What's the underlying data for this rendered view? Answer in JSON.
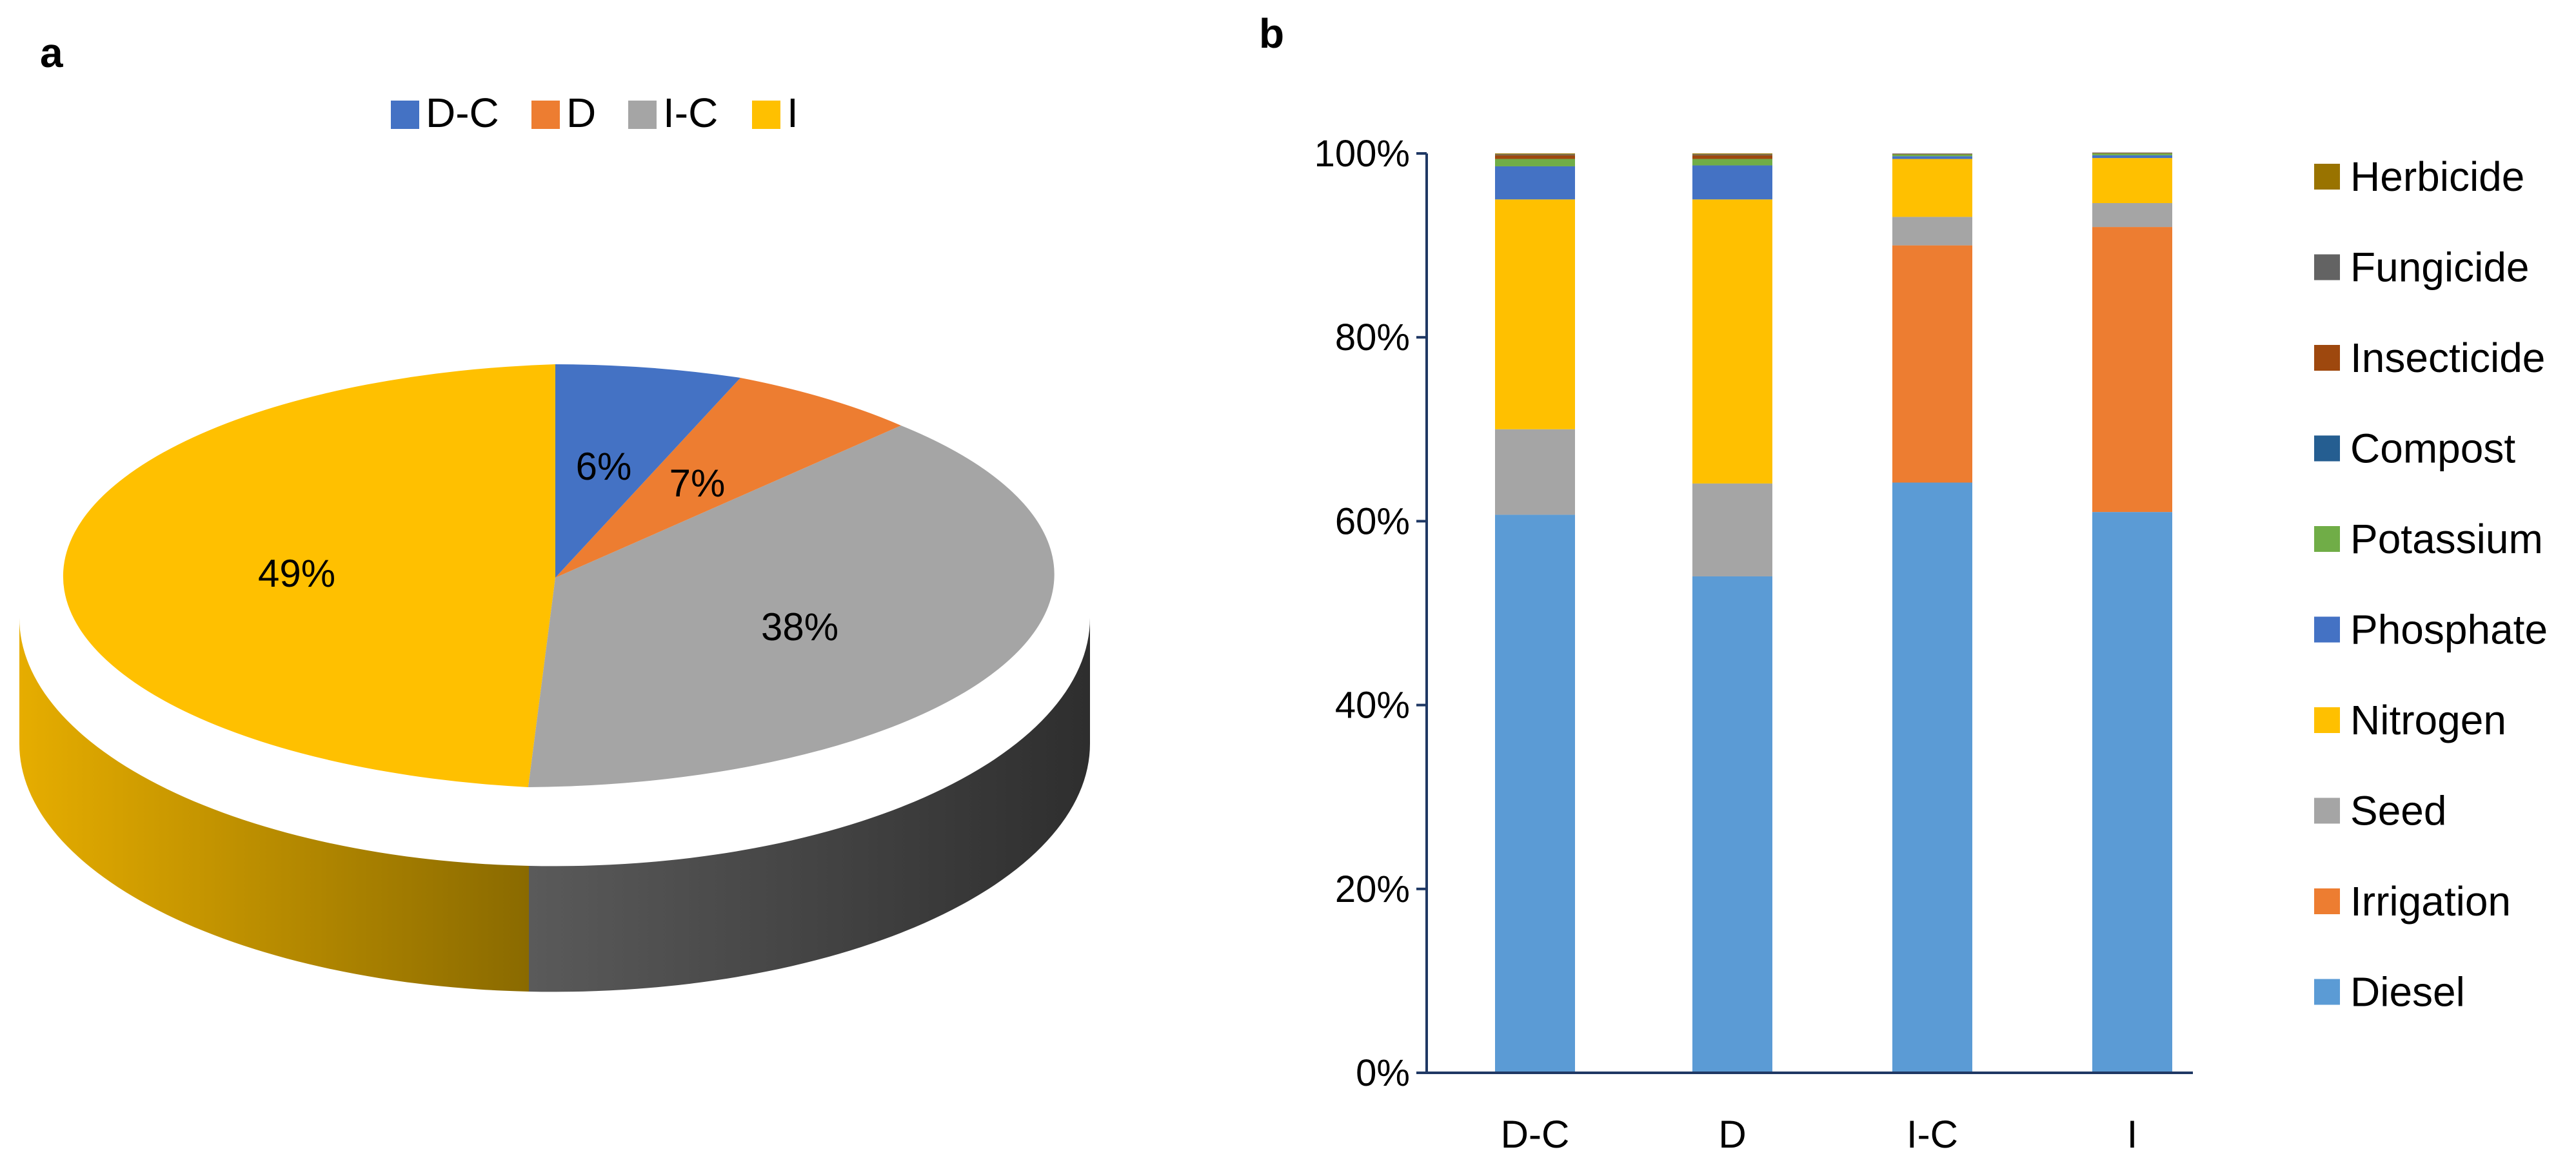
{
  "chart_data": [
    {
      "type": "pie",
      "panel_label": "a",
      "title": "",
      "legend_position": "top",
      "slices": [
        {
          "label": "D-C",
          "value": 6,
          "display": "6%",
          "color": "#4472C4"
        },
        {
          "label": "D",
          "value": 7,
          "display": "7%",
          "color": "#ED7D31"
        },
        {
          "label": "I-C",
          "value": 38,
          "display": "38%",
          "color": "#A5A5A5"
        },
        {
          "label": "I",
          "value": 49,
          "display": "49%",
          "color": "#FFC000"
        }
      ]
    },
    {
      "type": "bar",
      "stacked": true,
      "percent": true,
      "panel_label": "b",
      "title": "",
      "xlabel": "",
      "ylabel": "",
      "ylim": [
        0,
        100
      ],
      "yticks": [
        "0%",
        "20%",
        "40%",
        "60%",
        "80%",
        "100%"
      ],
      "legend_position": "right",
      "categories": [
        "D-C",
        "D",
        "I-C",
        "I"
      ],
      "series": [
        {
          "name": "Diesel",
          "color": "#5B9BD5",
          "values": [
            60.7,
            54.0,
            64.2,
            61.0
          ]
        },
        {
          "name": "Irrigation",
          "color": "#ED7D31",
          "values": [
            0,
            0,
            25.8,
            31.0
          ]
        },
        {
          "name": "Seed",
          "color": "#A5A5A5",
          "values": [
            9.3,
            10.1,
            3.1,
            2.6
          ]
        },
        {
          "name": "Nitrogen",
          "color": "#FFC000",
          "values": [
            25.0,
            30.9,
            6.3,
            4.9
          ]
        },
        {
          "name": "Phosphate",
          "color": "#4472C4",
          "values": [
            3.6,
            3.7,
            0.3,
            0.3
          ]
        },
        {
          "name": "Potassium",
          "color": "#70AD47",
          "values": [
            0.8,
            0.7,
            0.2,
            0.2
          ]
        },
        {
          "name": "Compost",
          "color": "#255E91",
          "values": [
            0,
            0,
            0,
            0
          ]
        },
        {
          "name": "Insecticide",
          "color": "#9E480E",
          "values": [
            0.4,
            0.4,
            0.05,
            0.05
          ]
        },
        {
          "name": "Fungicide",
          "color": "#636363",
          "values": [
            0.1,
            0.1,
            0.05,
            0.05
          ]
        },
        {
          "name": "Herbicide",
          "color": "#997300",
          "values": [
            0.1,
            0.1,
            0.0,
            0.0
          ]
        }
      ],
      "legend_order": [
        "Herbicide",
        "Fungicide",
        "Insecticide",
        "Compost",
        "Potassium",
        "Phosphate",
        "Nitrogen",
        "Seed",
        "Irrigation",
        "Diesel"
      ]
    }
  ]
}
